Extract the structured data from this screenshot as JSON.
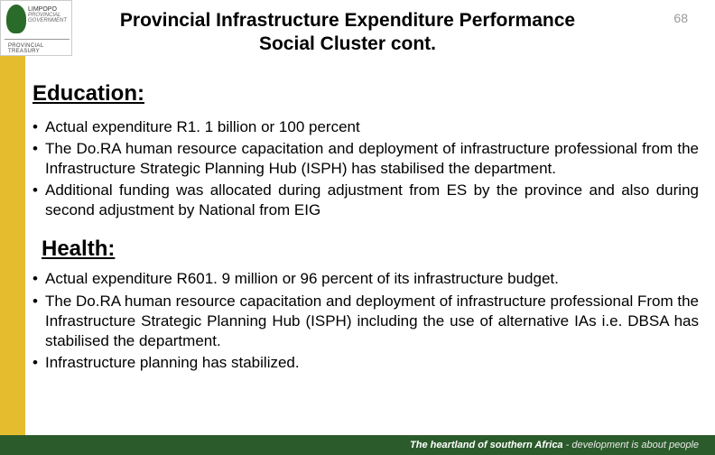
{
  "colors": {
    "sidebar": "#e6bc2f",
    "footer_bg": "#2b5b2b",
    "footer_text": "#e9e9e9",
    "page_bg": "#ffffff",
    "text": "#000000",
    "page_num": "#999999"
  },
  "logo": {
    "brand": "LIMPOPO",
    "tagline": "PROVINCIAL GOVERNMENT",
    "dept": "PROVINCIAL TREASURY"
  },
  "title": {
    "line1": "Provincial Infrastructure Expenditure Performance",
    "line2": "Social Cluster cont."
  },
  "page_number": "68",
  "sections": [
    {
      "heading": "Education:",
      "bullets": [
        "Actual expenditure R1. 1 billion or 100 percent",
        "The Do.RA human resource capacitation and deployment of infrastructure professional from the Infrastructure Strategic Planning Hub (ISPH) has stabilised the department.",
        "Additional funding was allocated during adjustment from ES  by the province and also during second adjustment by National from EIG"
      ]
    },
    {
      "heading": "Health:",
      "bullets": [
        "Actual expenditure R601. 9 million or 96 percent of its infrastructure budget.",
        "The Do.RA human resource capacitation and deployment of infrastructure professional From the Infrastructure Strategic Planning Hub (ISPH) including the use of alternative IAs i.e. DBSA has stabilised the department.",
        "Infrastructure planning has stabilized."
      ]
    }
  ],
  "footer": {
    "strong": "The heartland of southern Africa",
    "rest": " - development is about people"
  }
}
